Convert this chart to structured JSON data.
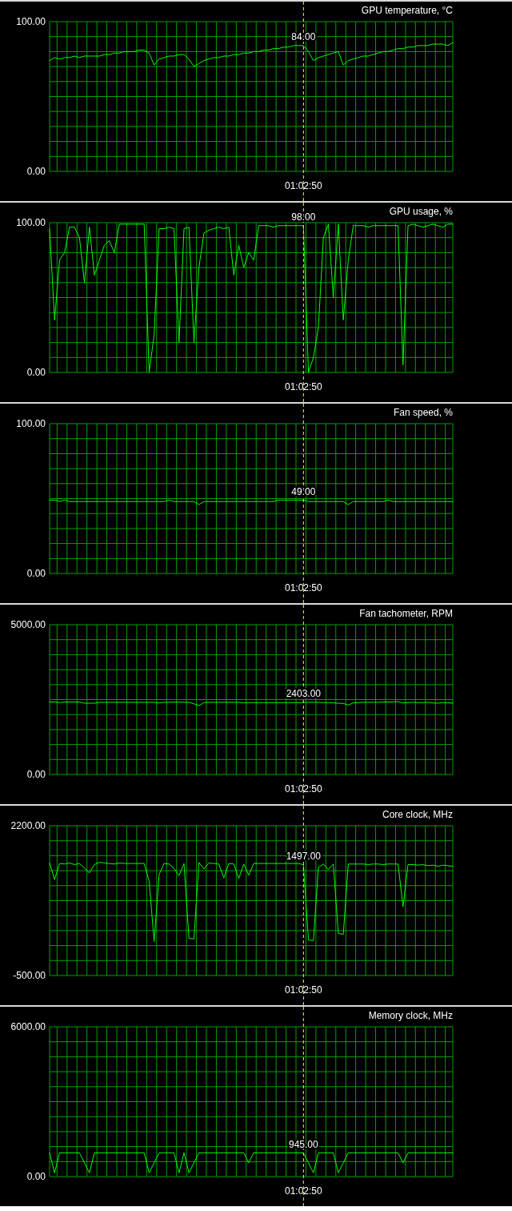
{
  "chart_data": [
    {
      "type": "line",
      "title": "GPU temperature, °C",
      "categories": [
        null,
        null,
        null,
        null,
        null,
        null,
        null,
        null,
        null,
        null,
        null,
        null,
        null,
        null,
        null,
        null,
        null,
        null,
        null,
        null,
        null,
        null,
        null,
        null,
        null,
        null,
        null,
        null,
        null,
        null,
        null,
        null,
        null,
        null,
        null,
        null,
        null,
        null,
        null,
        null,
        null,
        null,
        null,
        null,
        null,
        null,
        null,
        null,
        null,
        null,
        null,
        "01:02:50",
        null,
        null,
        null,
        null,
        null,
        null,
        null,
        null,
        null,
        null,
        null,
        null,
        null,
        null,
        null,
        null,
        null,
        null,
        null,
        null,
        null,
        null,
        null,
        null,
        null,
        null,
        null,
        null,
        null,
        null
      ],
      "series": [
        {
          "color": "#00ff00",
          "values": [
            74,
            76,
            75,
            76,
            76,
            77,
            76,
            77,
            77,
            77,
            77,
            78,
            78,
            79,
            79,
            80,
            80,
            80,
            81,
            81,
            79,
            71,
            75,
            76,
            77,
            77,
            78,
            78,
            75,
            70,
            72,
            74,
            75,
            76,
            76,
            77,
            77,
            78,
            78,
            79,
            79,
            80,
            80,
            81,
            81,
            82,
            82,
            83,
            83,
            84,
            84,
            84,
            80,
            74,
            76,
            77,
            78,
            79,
            80,
            71,
            74,
            75,
            76,
            77,
            77,
            78,
            79,
            80,
            80,
            81,
            82,
            82,
            83,
            83,
            84,
            84,
            84,
            85,
            85,
            85,
            84,
            86
          ]
        }
      ],
      "ylim": [
        0,
        100
      ],
      "yticks": [
        {
          "value": 0,
          "label": "0.00"
        },
        {
          "value": 10,
          "label": null
        },
        {
          "value": 20,
          "label": null
        },
        {
          "value": 30,
          "label": null
        },
        {
          "value": 40,
          "label": null
        },
        {
          "value": 50,
          "label": null
        },
        {
          "value": 60,
          "label": null
        },
        {
          "value": 70,
          "label": null
        },
        {
          "value": 80,
          "label": null
        },
        {
          "value": 90,
          "label": null
        },
        {
          "value": 100,
          "label": "100.00"
        }
      ],
      "grid": true,
      "ref_lines": [
        {
          "axis": "x",
          "value": "01:02:50",
          "color": "#ffff00",
          "line_style": "dashed"
        }
      ],
      "annotations": [
        {
          "text": "84.00",
          "x": "01:02:50",
          "y": 84
        }
      ]
    },
    {
      "type": "line",
      "title": "GPU usage, %",
      "categories": [
        null,
        null,
        null,
        null,
        null,
        null,
        null,
        null,
        null,
        null,
        null,
        null,
        null,
        null,
        null,
        null,
        null,
        null,
        null,
        null,
        null,
        null,
        null,
        null,
        null,
        null,
        null,
        null,
        null,
        null,
        null,
        null,
        null,
        null,
        null,
        null,
        null,
        null,
        null,
        null,
        null,
        null,
        null,
        null,
        null,
        null,
        null,
        null,
        null,
        null,
        null,
        "01:02:50",
        null,
        null,
        null,
        null,
        null,
        null,
        null,
        null,
        null,
        null,
        null,
        null,
        null,
        null,
        null,
        null,
        null,
        null,
        null,
        null,
        null,
        null,
        null,
        null,
        null,
        null,
        null,
        null,
        null,
        null
      ],
      "series": [
        {
          "color": "#00ff00",
          "values": [
            96,
            35,
            75,
            80,
            97,
            97,
            90,
            60,
            97,
            65,
            75,
            85,
            88,
            80,
            99,
            99,
            99,
            99,
            99,
            99,
            0,
            25,
            96,
            96,
            97,
            96,
            20,
            96,
            97,
            20,
            70,
            93,
            95,
            96,
            97,
            96,
            97,
            65,
            85,
            70,
            80,
            75,
            98,
            98,
            98,
            97,
            98,
            98,
            98,
            98,
            98,
            98,
            0,
            10,
            30,
            90,
            99,
            50,
            99,
            35,
            75,
            98,
            98,
            98,
            97,
            98,
            98,
            98,
            98,
            98,
            98,
            5,
            98,
            99,
            98,
            97,
            98,
            99,
            98,
            97,
            99,
            99
          ]
        }
      ],
      "ylim": [
        0,
        100
      ],
      "yticks": [
        {
          "value": 0,
          "label": "0.00"
        },
        {
          "value": 10,
          "label": null
        },
        {
          "value": 20,
          "label": null
        },
        {
          "value": 30,
          "label": null
        },
        {
          "value": 40,
          "label": null
        },
        {
          "value": 50,
          "label": null
        },
        {
          "value": 60,
          "label": null
        },
        {
          "value": 70,
          "label": null
        },
        {
          "value": 80,
          "label": null
        },
        {
          "value": 90,
          "label": null
        },
        {
          "value": 100,
          "label": "100.00"
        }
      ],
      "grid": true,
      "ref_lines": [
        {
          "axis": "x",
          "value": "01:02:50",
          "color": "#ffff00",
          "line_style": "dashed"
        }
      ],
      "annotations": [
        {
          "text": "98.00",
          "x": "01:02:50",
          "y": 98
        }
      ]
    },
    {
      "type": "line",
      "title": "Fan speed, %",
      "categories": [
        null,
        null,
        null,
        null,
        null,
        null,
        null,
        null,
        null,
        null,
        null,
        null,
        null,
        null,
        null,
        null,
        null,
        null,
        null,
        null,
        null,
        null,
        null,
        null,
        null,
        null,
        null,
        null,
        null,
        null,
        null,
        null,
        null,
        null,
        null,
        null,
        null,
        null,
        null,
        null,
        null,
        null,
        null,
        null,
        null,
        null,
        null,
        null,
        null,
        null,
        null,
        "01:02:50",
        null,
        null,
        null,
        null,
        null,
        null,
        null,
        null,
        null,
        null,
        null,
        null,
        null,
        null,
        null,
        null,
        null,
        null,
        null,
        null,
        null,
        null,
        null,
        null,
        null,
        null,
        null,
        null,
        null,
        null
      ],
      "series": [
        {
          "color": "#00ff00",
          "values": [
            49,
            49,
            48,
            49,
            48,
            48,
            48,
            48,
            48,
            48,
            48,
            48,
            48,
            48,
            48,
            48,
            48,
            48,
            48,
            48,
            48,
            48,
            48,
            48,
            49,
            48,
            48,
            48,
            48,
            48,
            46,
            48,
            48,
            48,
            48,
            48,
            48,
            48,
            48,
            48,
            48,
            48,
            48,
            48,
            48,
            48,
            49,
            49,
            49,
            49,
            49,
            49,
            48,
            48,
            48,
            48,
            48,
            48,
            48,
            48,
            46,
            48,
            48,
            48,
            48,
            48,
            48,
            48,
            49,
            48,
            48,
            48,
            48,
            48,
            48,
            48,
            48,
            48,
            48,
            48,
            48,
            48
          ]
        }
      ],
      "ylim": [
        0,
        100
      ],
      "yticks": [
        {
          "value": 0,
          "label": "0.00"
        },
        {
          "value": 10,
          "label": null
        },
        {
          "value": 20,
          "label": null
        },
        {
          "value": 30,
          "label": null
        },
        {
          "value": 40,
          "label": null
        },
        {
          "value": 50,
          "label": null
        },
        {
          "value": 60,
          "label": null
        },
        {
          "value": 70,
          "label": null
        },
        {
          "value": 80,
          "label": null
        },
        {
          "value": 90,
          "label": null
        },
        {
          "value": 100,
          "label": "100.00"
        }
      ],
      "grid": true,
      "ref_lines": [
        {
          "axis": "x",
          "value": "01:02:50",
          "color": "#ffff00",
          "line_style": "dashed"
        }
      ],
      "annotations": [
        {
          "text": "49.00",
          "x": "01:02:50",
          "y": 49
        }
      ]
    },
    {
      "type": "line",
      "title": "Fan tachometer, RPM",
      "categories": [
        null,
        null,
        null,
        null,
        null,
        null,
        null,
        null,
        null,
        null,
        null,
        null,
        null,
        null,
        null,
        null,
        null,
        null,
        null,
        null,
        null,
        null,
        null,
        null,
        null,
        null,
        null,
        null,
        null,
        null,
        null,
        null,
        null,
        null,
        null,
        null,
        null,
        null,
        null,
        null,
        null,
        null,
        null,
        null,
        null,
        null,
        null,
        null,
        null,
        null,
        null,
        "01:02:50",
        null,
        null,
        null,
        null,
        null,
        null,
        null,
        null,
        null,
        null,
        null,
        null,
        null,
        null,
        null,
        null,
        null,
        null,
        null,
        null,
        null,
        null,
        null,
        null,
        null,
        null,
        null,
        null,
        null,
        null
      ],
      "series": [
        {
          "color": "#00ff00",
          "values": [
            2420,
            2420,
            2400,
            2420,
            2420,
            2420,
            2420,
            2380,
            2380,
            2380,
            2410,
            2410,
            2410,
            2410,
            2410,
            2410,
            2410,
            2410,
            2410,
            2410,
            2410,
            2410,
            2390,
            2410,
            2410,
            2420,
            2420,
            2410,
            2410,
            2360,
            2300,
            2400,
            2410,
            2410,
            2410,
            2410,
            2410,
            2410,
            2410,
            2390,
            2400,
            2400,
            2400,
            2400,
            2400,
            2400,
            2400,
            2400,
            2400,
            2400,
            2400,
            2403,
            2410,
            2410,
            2410,
            2400,
            2400,
            2390,
            2380,
            2370,
            2320,
            2390,
            2400,
            2410,
            2410,
            2410,
            2410,
            2420,
            2420,
            2420,
            2430,
            2390,
            2400,
            2410,
            2400,
            2400,
            2410,
            2390,
            2380,
            2400,
            2390,
            2380
          ]
        }
      ],
      "ylim": [
        0,
        5000
      ],
      "yticks": [
        {
          "value": 0,
          "label": "0.00"
        },
        {
          "value": 500,
          "label": null
        },
        {
          "value": 1000,
          "label": null
        },
        {
          "value": 1500,
          "label": null
        },
        {
          "value": 2000,
          "label": null
        },
        {
          "value": 2500,
          "label": null
        },
        {
          "value": 3000,
          "label": null
        },
        {
          "value": 3500,
          "label": null
        },
        {
          "value": 4000,
          "label": null
        },
        {
          "value": 4500,
          "label": null
        },
        {
          "value": 5000,
          "label": "5000.00"
        }
      ],
      "grid": true,
      "ref_lines": [
        {
          "axis": "x",
          "value": "01:02:50",
          "color": "#ffff00",
          "line_style": "dashed"
        }
      ],
      "annotations": [
        {
          "text": "2403.00",
          "x": "01:02:50",
          "y": 2403
        }
      ]
    },
    {
      "type": "line",
      "title": "Core clock, MHz",
      "categories": [
        null,
        null,
        null,
        null,
        null,
        null,
        null,
        null,
        null,
        null,
        null,
        null,
        null,
        null,
        null,
        null,
        null,
        null,
        null,
        null,
        null,
        null,
        null,
        null,
        null,
        null,
        null,
        null,
        null,
        null,
        null,
        null,
        null,
        null,
        null,
        null,
        null,
        null,
        null,
        null,
        null,
        null,
        null,
        null,
        null,
        null,
        null,
        null,
        null,
        null,
        null,
        "01:02:50",
        null,
        null,
        null,
        null,
        null,
        null,
        null,
        null,
        null,
        null,
        null,
        null,
        null,
        null,
        null,
        null,
        null,
        null,
        null,
        null,
        null,
        null,
        null,
        null,
        null,
        null,
        null,
        null,
        null,
        null
      ],
      "series": [
        {
          "color": "#00ff00",
          "values": [
            1530,
            1230,
            1520,
            1510,
            1530,
            1500,
            1520,
            1440,
            1350,
            1500,
            1540,
            1530,
            1520,
            1510,
            1530,
            1520,
            1520,
            1520,
            1520,
            1520,
            1200,
            110,
            1320,
            1520,
            1510,
            1430,
            1300,
            1520,
            170,
            160,
            1540,
            1420,
            1530,
            1520,
            1510,
            1260,
            1520,
            1510,
            1250,
            1510,
            1310,
            1520,
            1520,
            1520,
            1520,
            1520,
            1520,
            1520,
            1520,
            1520,
            1520,
            1497,
            140,
            130,
            1450,
            1510,
            1410,
            1510,
            260,
            240,
            1510,
            1510,
            1510,
            1510,
            1500,
            1510,
            1510,
            1500,
            1510,
            1510,
            1510,
            740,
            1500,
            1500,
            1490,
            1500,
            1480,
            1490,
            1470,
            1490,
            1480,
            1470
          ]
        }
      ],
      "ylim": [
        -500,
        2200
      ],
      "yticks": [
        {
          "value": -500,
          "label": "-500.00"
        },
        {
          "value": -230,
          "label": null
        },
        {
          "value": 40,
          "label": null
        },
        {
          "value": 310,
          "label": null
        },
        {
          "value": 580,
          "label": null
        },
        {
          "value": 850,
          "label": null
        },
        {
          "value": 1120,
          "label": null
        },
        {
          "value": 1390,
          "label": null
        },
        {
          "value": 1660,
          "label": null
        },
        {
          "value": 1930,
          "label": null
        },
        {
          "value": 2200,
          "label": "2200.00"
        }
      ],
      "grid": true,
      "ref_lines": [
        {
          "axis": "x",
          "value": "01:02:50",
          "color": "#ffff00",
          "line_style": "dashed"
        }
      ],
      "annotations": [
        {
          "text": "1497.00",
          "x": "01:02:50",
          "y": 1497
        }
      ]
    },
    {
      "type": "line",
      "title": "Memory clock, MHz",
      "categories": [
        null,
        null,
        null,
        null,
        null,
        null,
        null,
        null,
        null,
        null,
        null,
        null,
        null,
        null,
        null,
        null,
        null,
        null,
        null,
        null,
        null,
        null,
        null,
        null,
        null,
        null,
        null,
        null,
        null,
        null,
        null,
        null,
        null,
        null,
        null,
        null,
        null,
        null,
        null,
        null,
        null,
        null,
        null,
        null,
        null,
        null,
        null,
        null,
        null,
        null,
        null,
        "01:02:50",
        null,
        null,
        null,
        null,
        null,
        null,
        null,
        null,
        null,
        null,
        null,
        null,
        null,
        null,
        null,
        null,
        null,
        null,
        null,
        null,
        null,
        null,
        null,
        null,
        null,
        null,
        null,
        null,
        null,
        null
      ],
      "series": [
        {
          "color": "#00ff00",
          "values": [
            950,
            150,
            950,
            950,
            950,
            950,
            950,
            550,
            150,
            950,
            950,
            950,
            950,
            950,
            950,
            950,
            950,
            950,
            950,
            950,
            150,
            550,
            950,
            950,
            950,
            950,
            150,
            950,
            150,
            550,
            950,
            950,
            950,
            950,
            950,
            950,
            950,
            950,
            950,
            950,
            550,
            950,
            950,
            950,
            950,
            950,
            950,
            950,
            950,
            950,
            950,
            945,
            550,
            150,
            950,
            950,
            950,
            950,
            150,
            550,
            950,
            950,
            950,
            950,
            950,
            950,
            950,
            950,
            950,
            950,
            950,
            550,
            950,
            950,
            950,
            950,
            950,
            950,
            950,
            950,
            950,
            950
          ]
        }
      ],
      "ylim": [
        0,
        6000
      ],
      "yticks": [
        {
          "value": 0,
          "label": "0.00"
        },
        {
          "value": 600,
          "label": null
        },
        {
          "value": 1200,
          "label": null
        },
        {
          "value": 1800,
          "label": null
        },
        {
          "value": 2400,
          "label": null
        },
        {
          "value": 3000,
          "label": null
        },
        {
          "value": 3600,
          "label": null
        },
        {
          "value": 4200,
          "label": null
        },
        {
          "value": 4800,
          "label": null
        },
        {
          "value": 5400,
          "label": null
        },
        {
          "value": 6000,
          "label": "6000.00"
        }
      ],
      "grid": true,
      "ref_lines": [
        {
          "axis": "x",
          "value": "01:02:50",
          "color": "#ffff00",
          "line_style": "dashed"
        }
      ],
      "annotations": [
        {
          "text": "945.00",
          "x": "01:02:50",
          "y": 945
        }
      ]
    }
  ]
}
